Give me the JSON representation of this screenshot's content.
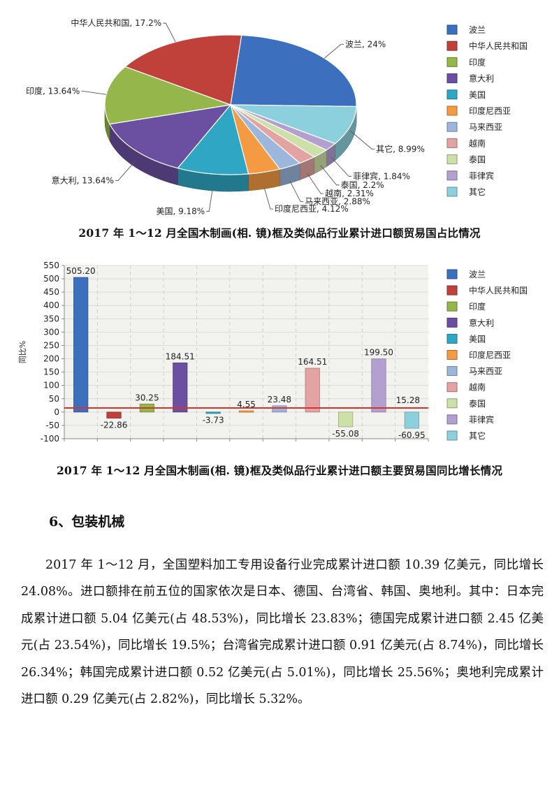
{
  "pie_chart": {
    "caption": "2017 年 1～12 月全国木制画(相. 镜)框及类似品行业累计进口额贸易国占比情况",
    "chart_data": {
      "type": "pie",
      "categories": [
        "波兰",
        "其它",
        "菲律宾",
        "泰国",
        "越南",
        "马来西亚",
        "印度尼西亚",
        "美国",
        "意大利",
        "印度",
        "中华人民共和国"
      ],
      "values": [
        24,
        8.99,
        1.84,
        2.2,
        2.31,
        2.88,
        4.12,
        9.18,
        13.64,
        13.64,
        17.2
      ],
      "slice_labels": [
        "波兰, 24%",
        "其它, 8.99%",
        "菲律宾, 1.84%",
        "泰国, 2.2%",
        "越南, 2.31%",
        "马来西亚, 2.88%",
        "印度尼西亚, 4.12%",
        "美国, 9.18%",
        "意大利, 13.64%",
        "印度, 13.64%",
        "中华人民共和国, 17.2%"
      ],
      "colors": [
        "#3d6fbf",
        "#8cd0de",
        "#b3a0d0",
        "#cde0a8",
        "#e3a3a3",
        "#9cb6dc",
        "#f39a43",
        "#2fa7c4",
        "#6b4fa0",
        "#94b64a",
        "#c0403a"
      ],
      "legend": [
        "波兰",
        "中华人民共和国",
        "印度",
        "意大利",
        "美国",
        "印度尼西亚",
        "马来西亚",
        "越南",
        "泰国",
        "菲律宾",
        "其它"
      ],
      "legend_colors": [
        "#3d6fbf",
        "#c0403a",
        "#94b64a",
        "#6b4fa0",
        "#2fa7c4",
        "#f39a43",
        "#9cb6dc",
        "#e3a3a3",
        "#cde0a8",
        "#b3a0d0",
        "#8cd0de"
      ],
      "legend_placement": "right"
    }
  },
  "bar_chart": {
    "caption": "2017 年 1～12 月全国木制画(相. 镜)框及类似品行业累计进口额主要贸易国同比增长情况",
    "chart_data": {
      "type": "bar",
      "categories": [
        "波兰",
        "中华人民共和国",
        "印度",
        "意大利",
        "美国",
        "印度尼西亚",
        "马来西亚",
        "越南",
        "泰国",
        "菲律宾",
        "其它"
      ],
      "values": [
        505.2,
        -22.86,
        30.25,
        184.51,
        -3.73,
        4.55,
        23.48,
        164.51,
        -55.08,
        199.5,
        -60.95
      ],
      "value_labels": [
        "505.20",
        "-22.86",
        "30.25",
        "184.51",
        "-3.73",
        "4.55",
        "23.48",
        "164.51",
        "-55.08",
        "199.50",
        "-60.95"
      ],
      "extra_label": "15.28",
      "colors": [
        "#3d6fbf",
        "#c0403a",
        "#94b64a",
        "#6b4fa0",
        "#2fa7c4",
        "#f39a43",
        "#9cb6dc",
        "#e3a3a3",
        "#cde0a8",
        "#b3a0d0",
        "#8cd0de"
      ],
      "ylabel": "同比%",
      "ylim": [
        -100,
        550
      ],
      "yticks": [
        550,
        500,
        450,
        400,
        350,
        300,
        250,
        200,
        150,
        100,
        50,
        0,
        -50,
        -100
      ],
      "reference_line": 15.28,
      "grid": true,
      "legend_placement": "right"
    }
  },
  "section": {
    "heading": "6、包装机械",
    "paragraph": "2017 年 1～12 月，全国塑料加工专用设备行业完成累计进口额 10.39 亿美元，同比增长 24.08%。进口额排在前五位的国家依次是日本、德国、台湾省、韩国、奥地利。其中：日本完成累计进口额 5.04 亿美元(占 48.53%)，同比增长 23.83%；德国完成累计进口额 2.45 亿美元(占 23.54%)，同比增长 19.5%；台湾省完成累计进口额 0.91 亿美元(占 8.74%)，同比增长 26.34%；韩国完成累计进口额 0.52 亿美元(占 5.01%)，同比增长 25.56%；奥地利完成累计进口额 0.29 亿美元(占 2.82%)，同比增长 5.32%。"
  }
}
